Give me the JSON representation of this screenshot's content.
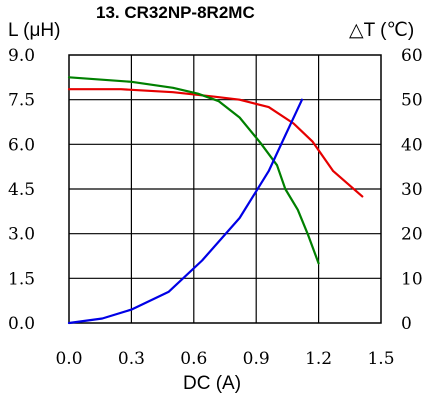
{
  "chart_data": {
    "type": "line",
    "title": "13. CR32NP-8R2MC",
    "xlabel": "DC (A)",
    "ylabel_left": "L (μH)",
    "ylabel_right": "△T (℃)",
    "xlim": [
      0,
      1.5
    ],
    "ylim_left": [
      0,
      9
    ],
    "ylim_right": [
      0,
      60
    ],
    "x_ticks": [
      "0.0",
      "0.3",
      "0.6",
      "0.9",
      "1.2",
      "1.5"
    ],
    "y_left_ticks": [
      "0.0",
      "1.5",
      "3.0",
      "4.5",
      "6.0",
      "7.5",
      "9.0"
    ],
    "y_right_ticks": [
      "0",
      "10",
      "20",
      "30",
      "40",
      "50",
      "60"
    ],
    "grid": true,
    "series": [
      {
        "axis": "left",
        "color": "#e60000",
        "points": [
          [
            0,
            7.85
          ],
          [
            0.25,
            7.85
          ],
          [
            0.5,
            7.75
          ],
          [
            0.7,
            7.6
          ],
          [
            0.82,
            7.5
          ],
          [
            0.96,
            7.25
          ],
          [
            1.08,
            6.7
          ],
          [
            1.17,
            6.1
          ],
          [
            1.27,
            5.1
          ],
          [
            1.41,
            4.25
          ]
        ]
      },
      {
        "axis": "left",
        "color": "#008000",
        "points": [
          [
            0,
            8.25
          ],
          [
            0.3,
            8.1
          ],
          [
            0.5,
            7.9
          ],
          [
            0.62,
            7.7
          ],
          [
            0.72,
            7.45
          ],
          [
            0.82,
            6.9
          ],
          [
            0.92,
            6.05
          ],
          [
            1.0,
            5.3
          ],
          [
            1.04,
            4.5
          ],
          [
            1.1,
            3.8
          ],
          [
            1.15,
            2.95
          ],
          [
            1.2,
            2.0
          ]
        ]
      },
      {
        "axis": "right",
        "color": "#0000e6",
        "points": [
          [
            0,
            0
          ],
          [
            0.16,
            1
          ],
          [
            0.3,
            3
          ],
          [
            0.48,
            7
          ],
          [
            0.64,
            14
          ],
          [
            0.82,
            23.5
          ],
          [
            0.96,
            34
          ],
          [
            1.04,
            42
          ],
          [
            1.12,
            50
          ]
        ]
      }
    ]
  }
}
